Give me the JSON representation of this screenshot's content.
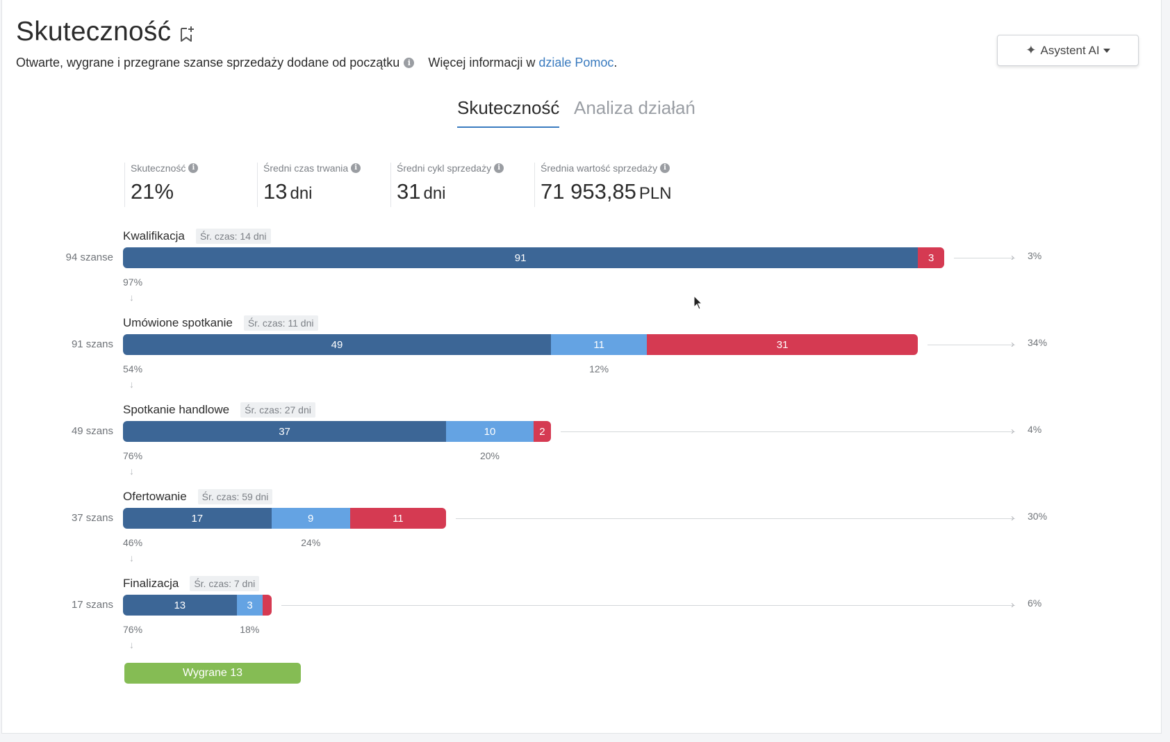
{
  "header": {
    "title": "Skuteczność",
    "subtitle": "Otwarte, wygrane i przegrane szanse sprzedaży dodane od początku",
    "more_info_prefix": "Więcej informacji w",
    "help_link": "dziale Pomoc",
    "more_info_suffix": ".",
    "ai_button": "Asystent AI"
  },
  "tabs": [
    {
      "label": "Skuteczność",
      "active": true
    },
    {
      "label": "Analiza działań",
      "active": false
    }
  ],
  "kpis": [
    {
      "label": "Skuteczność",
      "value": "21%",
      "unit": ""
    },
    {
      "label": "Średni czas trwania",
      "value": "13",
      "unit": "dni"
    },
    {
      "label": "Średni cykl sprzedaży",
      "value": "31",
      "unit": "dni"
    },
    {
      "label": "Średnia wartość sprzedaży",
      "value": "71 953,85",
      "unit": "PLN"
    }
  ],
  "stages": [
    {
      "name": "Kwalifikacja",
      "avg": "Śr. czas: 14 dni",
      "count_label": "94 szanse",
      "advanced": 91,
      "open": 0,
      "lost": 3,
      "advanced_label": "91",
      "open_label": "",
      "lost_label": "3",
      "advanced_pct": "97%",
      "open_pct": "",
      "lost_pct": "3%"
    },
    {
      "name": "Umówione spotkanie",
      "avg": "Śr. czas: 11 dni",
      "count_label": "91 szans",
      "advanced": 49,
      "open": 11,
      "lost": 31,
      "advanced_label": "49",
      "open_label": "11",
      "lost_label": "31",
      "advanced_pct": "54%",
      "open_pct": "12%",
      "lost_pct": "34%"
    },
    {
      "name": "Spotkanie handlowe",
      "avg": "Śr. czas: 27 dni",
      "count_label": "49 szans",
      "advanced": 37,
      "open": 10,
      "lost": 2,
      "advanced_label": "37",
      "open_label": "10",
      "lost_label": "2",
      "advanced_pct": "76%",
      "open_pct": "20%",
      "lost_pct": "4%"
    },
    {
      "name": "Ofertowanie",
      "avg": "Śr. czas: 59 dni",
      "count_label": "37 szans",
      "advanced": 17,
      "open": 9,
      "lost": 11,
      "advanced_label": "17",
      "open_label": "9",
      "lost_label": "11",
      "advanced_pct": "46%",
      "open_pct": "24%",
      "lost_pct": "30%"
    },
    {
      "name": "Finalizacja",
      "avg": "Śr. czas: 7 dni",
      "count_label": "17 szans",
      "advanced": 13,
      "open": 3,
      "lost": 1,
      "advanced_label": "13",
      "open_label": "3",
      "lost_label": "",
      "advanced_pct": "76%",
      "open_pct": "18%",
      "lost_pct": "6%"
    }
  ],
  "won": {
    "label": "Wygrane 13",
    "value": 13
  },
  "colors": {
    "advanced": "#3c6696",
    "open": "#64a3e3",
    "lost": "#d53a52",
    "won": "#85bc54",
    "link": "#3a7bbf"
  },
  "icons": {
    "bookmark": "bookmark-add-icon",
    "info": "info-icon",
    "ai": "sparkle-icon",
    "arrow_down": "arrow-down-icon",
    "arrow_right": "arrow-right-icon",
    "cursor": "mouse-cursor-icon"
  }
}
